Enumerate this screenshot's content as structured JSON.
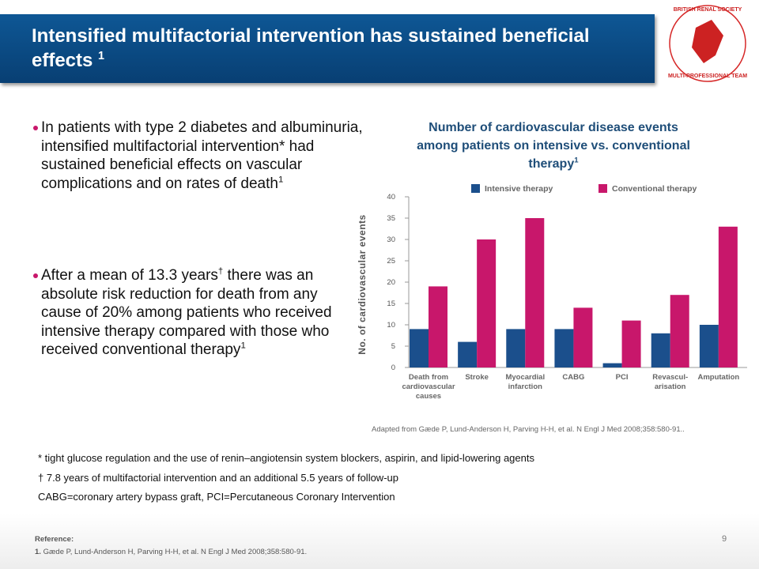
{
  "header": {
    "title": "Intensified multifactorial intervention has sustained beneficial effects",
    "title_ref": "1"
  },
  "logo": {
    "top": "BRITISH RENAL SOCIETY",
    "bottom": "MULTI-PROFESSIONAL TEAM"
  },
  "bullets": [
    {
      "parts": [
        "In patients with type 2 diabetes and albuminuria, intensified multifactorial intervention* had sustained beneficial effects on vascular complications and on rates of death"
      ],
      "refs": [
        "1"
      ]
    },
    {
      "parts": [
        "After a mean of 13.3 years",
        "there was an absolute risk reduction for death from any cause of 20% among patients who received intensive therapy compared with those who received conventional therapy"
      ],
      "refs": [
        "†",
        "1"
      ]
    }
  ],
  "footnotes": [
    "* tight glucose regulation and the use of renin–angiotensin system blockers, aspirin, and lipid-lowering agents",
    "† 7.8 years of multifactorial intervention and an additional 5.5 years of follow-up",
    "CABG=coronary artery bypass graft, PCI=Percutaneous Coronary Intervention"
  ],
  "source": "Adapted from Gæde P, Lund-Anderson H, Parving H-H, et al. N Engl J Med 2008;358:580-91..",
  "reference": {
    "heading": "Reference:",
    "number": "1.",
    "text": "Gæde P, Lund-Anderson H, Parving H-H, et al. N Engl J Med 2008;358:580-91."
  },
  "page_number": "9",
  "chart_data": {
    "type": "bar",
    "title": "Number of cardiovascular disease events among patients on intensive vs. conventional therapy",
    "title_ref": "1",
    "y_label": "No. of cardiovascular events",
    "categories": [
      "Death from\ncardiovascular\ncauses",
      "Stroke",
      "Myocardial\ninfarction",
      "CABG",
      "PCI",
      "Revascul-\narisation",
      "Amputation"
    ],
    "series": [
      {
        "name": "Intensive therapy",
        "color": "#1b4f8c",
        "values": [
          9,
          6,
          9,
          9,
          1,
          8,
          10
        ]
      },
      {
        "name": "Conventional therapy",
        "color": "#c8176b",
        "values": [
          19,
          30,
          35,
          14,
          11,
          17,
          33
        ]
      }
    ],
    "ylim": [
      0,
      40
    ],
    "yticks": [
      0,
      5,
      10,
      15,
      20,
      25,
      30,
      35,
      40
    ],
    "grid": false,
    "legend": "top"
  }
}
